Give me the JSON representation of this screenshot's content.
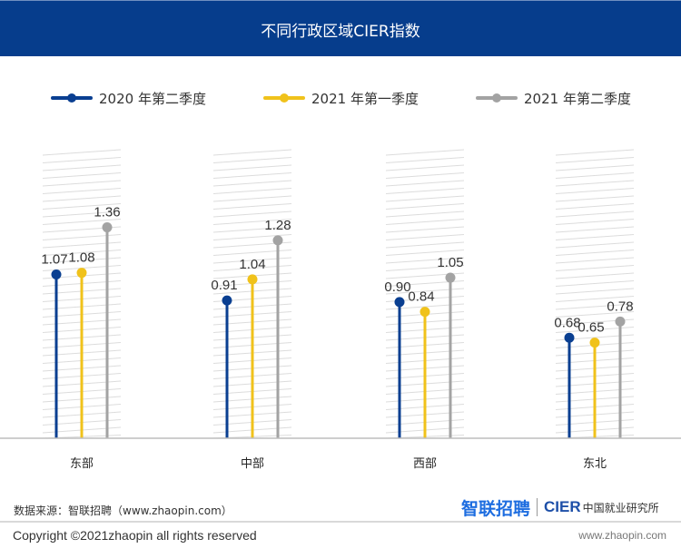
{
  "header": {
    "title": "不同行政区域CIER指数"
  },
  "colors": {
    "header_bg": "#063d8c",
    "series": [
      "#0a3f91",
      "#f0c21b",
      "#a3a3a3"
    ],
    "hatch": "#dcdcdc",
    "baseline": "#bdbdbd"
  },
  "legend": [
    {
      "label": "2020 年第二季度"
    },
    {
      "label": "2021 年第一季度"
    },
    {
      "label": "2021 年第二季度"
    }
  ],
  "chart_data": {
    "type": "lollipop",
    "title": "不同行政区域CIER指数",
    "categories": [
      "东部",
      "中部",
      "西部",
      "东北"
    ],
    "series": [
      {
        "name": "2020 年第二季度",
        "values": [
          1.07,
          0.91,
          0.9,
          0.68
        ]
      },
      {
        "name": "2021 年第一季度",
        "values": [
          1.08,
          1.04,
          0.84,
          0.65
        ]
      },
      {
        "name": "2021 年第二季度",
        "values": [
          1.36,
          1.28,
          1.05,
          0.78
        ]
      }
    ],
    "value_labels": [
      [
        "1.07",
        "0.91",
        "0.90",
        "0.68"
      ],
      [
        "1.08",
        "1.04",
        "0.84",
        "0.65"
      ],
      [
        "1.36",
        "1.28",
        "1.05",
        "0.78"
      ]
    ],
    "xlabel": "",
    "ylabel": "",
    "ylim": [
      0,
      2.0
    ],
    "grid": false,
    "legend_position": "top"
  },
  "footer": {
    "source": "数据来源：智联招聘（www.zhaopin.com）",
    "copyright": "Copyright ©2021zhaopin all rights reserved",
    "url": "www.zhaopin.com",
    "logo_zhaopin": "智联招聘",
    "logo_cier": "CIER",
    "logo_cier_cn": "中国就业研究所"
  }
}
